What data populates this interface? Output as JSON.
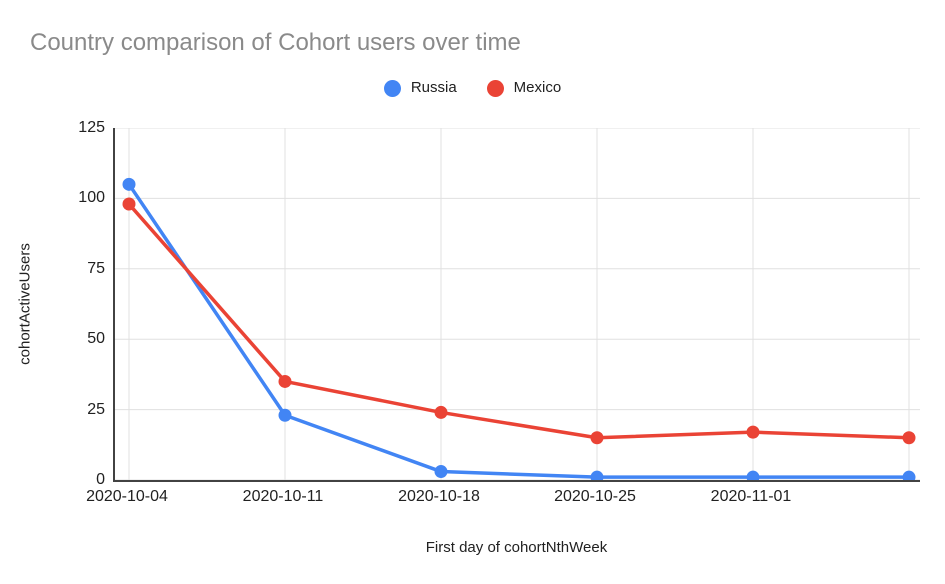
{
  "title": "Country comparison of Cohort users over time",
  "legend": {
    "items": [
      {
        "label": "Russia",
        "color": "#4285f4"
      },
      {
        "label": "Mexico",
        "color": "#ea4335"
      }
    ]
  },
  "chart_data": {
    "type": "line",
    "title": "Country comparison of Cohort users over time",
    "xlabel": "First day of cohortNthWeek",
    "ylabel": "cohortActiveUsers",
    "categories": [
      "2020-10-04",
      "2020-10-11",
      "2020-10-18",
      "2020-10-25",
      "2020-11-01",
      ""
    ],
    "x_tick_labels": [
      "2020-10-04",
      "2020-10-11",
      "2020-10-18",
      "2020-10-25",
      "2020-11-01"
    ],
    "series": [
      {
        "name": "Russia",
        "color": "#4285f4",
        "values": [
          105,
          23,
          3,
          1,
          1,
          1
        ]
      },
      {
        "name": "Mexico",
        "color": "#ea4335",
        "values": [
          98,
          35,
          24,
          15,
          17,
          15
        ]
      }
    ],
    "ylim": [
      0,
      125
    ],
    "yticks": [
      0,
      25,
      50,
      75,
      100,
      125
    ],
    "grid": true,
    "legend_position": "top-center",
    "colors": {
      "gridline": "#e0e0e0",
      "axis_line": "#424242",
      "tick_text": "#212121",
      "title_text": "#8a8a8a"
    }
  }
}
